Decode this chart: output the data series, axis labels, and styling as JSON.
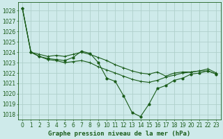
{
  "title": "Graphe pression niveau de la mer (hPa)",
  "bg_color": "#ceeaea",
  "grid_color": "#b0d0cc",
  "line_color": "#1a5c1a",
  "xlim": [
    -0.5,
    23.5
  ],
  "ylim": [
    1017.5,
    1028.8
  ],
  "yticks": [
    1018,
    1019,
    1020,
    1021,
    1022,
    1023,
    1024,
    1025,
    1026,
    1027,
    1028
  ],
  "xticks": [
    0,
    1,
    2,
    3,
    4,
    5,
    6,
    7,
    8,
    9,
    10,
    11,
    12,
    13,
    14,
    15,
    16,
    17,
    18,
    19,
    20,
    21,
    22,
    23
  ],
  "series1": [
    1028.2,
    1024.0,
    1023.6,
    1023.4,
    1023.3,
    1023.2,
    1023.5,
    1024.1,
    1023.9,
    1023.0,
    1021.5,
    1021.2,
    1019.8,
    1018.2,
    1017.8,
    1019.0,
    1020.5,
    1020.8,
    1021.3,
    1021.5,
    1021.9,
    1022.0,
    1022.2,
    1021.9
  ],
  "series2": [
    1028.2,
    1024.0,
    1023.6,
    1023.3,
    1023.2,
    1023.0,
    1023.1,
    1023.2,
    1023.0,
    1022.6,
    1022.3,
    1022.0,
    1021.7,
    1021.4,
    1021.2,
    1021.1,
    1021.3,
    1021.6,
    1021.8,
    1022.0,
    1022.1,
    1022.2,
    1022.2,
    1021.9
  ],
  "series3": [
    1028.2,
    1024.0,
    1023.8,
    1023.6,
    1023.7,
    1023.6,
    1023.8,
    1024.0,
    1023.8,
    1023.5,
    1023.2,
    1022.8,
    1022.5,
    1022.2,
    1022.0,
    1021.9,
    1022.1,
    1021.7,
    1022.0,
    1022.1,
    1022.1,
    1022.2,
    1022.4,
    1022.0
  ],
  "marker_size": 2.0,
  "linewidth": 0.8,
  "tick_fontsize": 5.5,
  "title_fontsize": 6.5
}
